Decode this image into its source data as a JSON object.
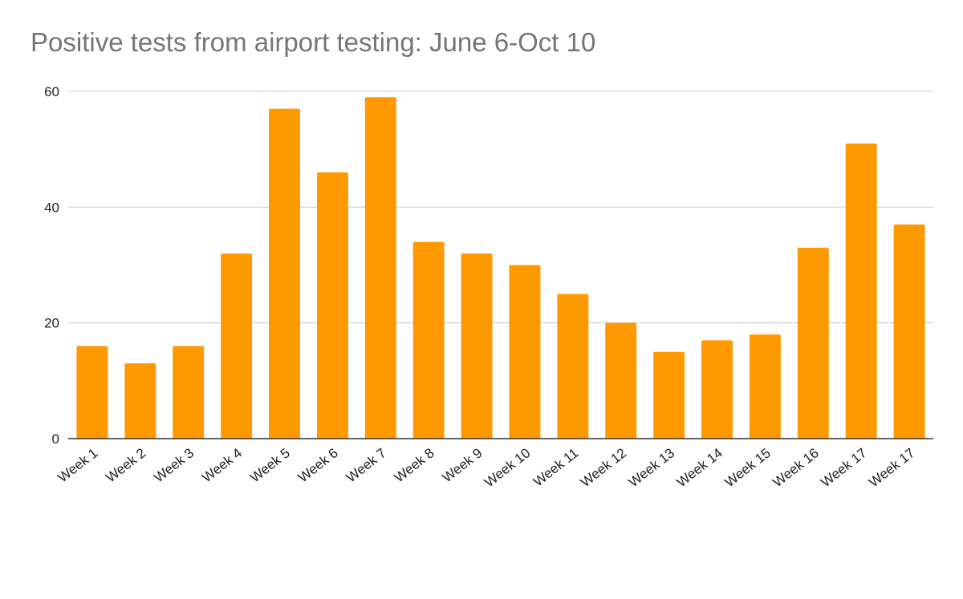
{
  "chart_data": {
    "type": "bar",
    "title": "Positive tests from airport testing: June 6-Oct 10",
    "xlabel": "",
    "ylabel": "",
    "ylim": [
      0,
      60
    ],
    "yticks": [
      0,
      20,
      40,
      60
    ],
    "grid": true,
    "legend": "none",
    "categories": [
      "Week 1",
      "Week 2",
      "Week 3",
      "Week 4",
      "Week 5",
      "Week 6",
      "Week 7",
      "Week 8",
      "Week 9",
      "Week 10",
      "Week 11",
      "Week 12",
      "Week 13",
      "Week 14",
      "Week 15",
      "Week 16",
      "Week 17",
      "Week 17"
    ],
    "values": [
      16,
      13,
      16,
      32,
      57,
      46,
      59,
      34,
      32,
      30,
      25,
      20,
      15,
      17,
      18,
      33,
      51,
      37
    ],
    "colors": {
      "bar": "#FF9900",
      "grid": "#CCCCCC",
      "axis": "#333333"
    }
  }
}
